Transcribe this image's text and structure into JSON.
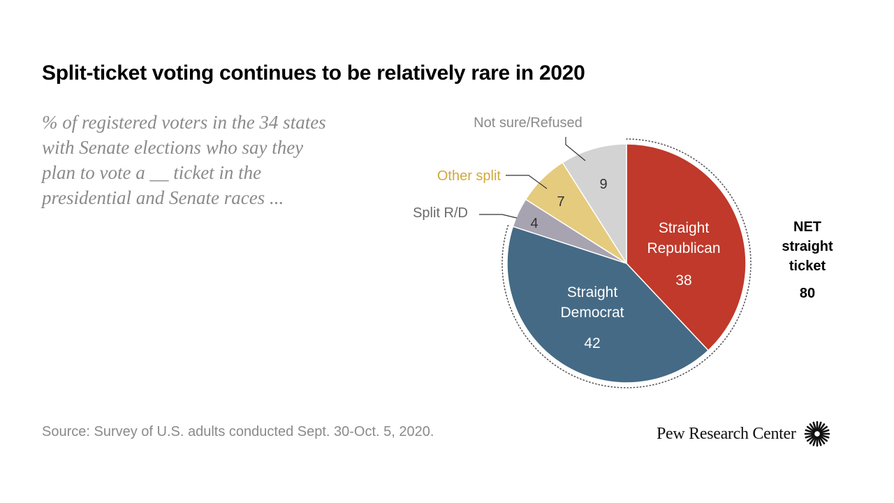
{
  "title": "Split-ticket voting continues to be relatively rare in 2020",
  "subtitle_lines": [
    "% of registered voters in the 34 states",
    "with Senate elections who say they",
    "plan to vote a __ ticket in the",
    "presidential and Senate races ..."
  ],
  "source": "Source: Survey of U.S. adults conducted Sept. 30-Oct. 5, 2020.",
  "brand": {
    "name": "Pew Research Center",
    "logo_icon": "pew-sunburst-icon"
  },
  "net": {
    "label_lines": [
      "NET",
      "straight",
      "ticket"
    ],
    "value": "80"
  },
  "chart_data": {
    "type": "pie",
    "title": "Split-ticket voting continues to be relatively rare in 2020",
    "start": "12 o'clock, clockwise",
    "slices": [
      {
        "key": "straight-republican",
        "label_lines": [
          "Straight",
          "Republican"
        ],
        "value": 38,
        "color": "#c0392b",
        "text_color": "#ffffff",
        "label_position": "inside"
      },
      {
        "key": "straight-democrat",
        "label_lines": [
          "Straight",
          "Democrat"
        ],
        "value": 42,
        "color": "#456a85",
        "text_color": "#ffffff",
        "label_position": "inside"
      },
      {
        "key": "split-r-d",
        "label_lines": [
          "Split R/D"
        ],
        "value": 4,
        "color": "#a8a3b0",
        "text_color": "#333333",
        "label_position": "outside",
        "label_color": "#6b6b6b"
      },
      {
        "key": "other-split",
        "label_lines": [
          "Other split"
        ],
        "value": 7,
        "color": "#e5cb7d",
        "text_color": "#333333",
        "label_position": "outside",
        "label_color": "#d1a83f"
      },
      {
        "key": "not-sure-refused",
        "label_lines": [
          "Not sure/Refused"
        ],
        "value": 9,
        "color": "#d3d3d3",
        "text_color": "#333333",
        "label_position": "outside",
        "label_color": "#8a8a8a"
      }
    ],
    "net_bracket": {
      "covers": [
        "straight-republican",
        "straight-democrat"
      ],
      "style": "dotted"
    }
  }
}
